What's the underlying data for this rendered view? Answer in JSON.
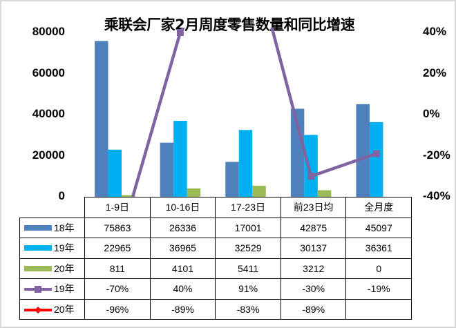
{
  "chart_data": {
    "type": "bar+line",
    "title": "乘联会厂家2月周度零售数量和同比增速",
    "categories": [
      "1-9日",
      "10-16日",
      "17-23日",
      "前23日均",
      "全月度"
    ],
    "left_axis": {
      "ylim": [
        0,
        80000
      ],
      "ticks": [
        "0",
        "20000",
        "40000",
        "60000",
        "80000"
      ]
    },
    "right_axis": {
      "ylim": [
        -40,
        40
      ],
      "ticks": [
        "-40%",
        "-20%",
        "0%",
        "20%",
        "40%"
      ]
    },
    "grid": false,
    "legend": "table",
    "bar_series": [
      {
        "name": "18年",
        "color": "#4f81bd",
        "values": [
          75863,
          26336,
          17001,
          42875,
          45097
        ],
        "labels": [
          "75863",
          "26336",
          "17001",
          "42875",
          "45097"
        ]
      },
      {
        "name": "19年",
        "color": "#00b0f0",
        "values": [
          22965,
          36965,
          32529,
          30137,
          36361
        ],
        "labels": [
          "22965",
          "36965",
          "32529",
          "30137",
          "36361"
        ]
      },
      {
        "name": "20年",
        "color": "#9bbb59",
        "values": [
          811,
          4101,
          5411,
          3212,
          0
        ],
        "labels": [
          "811",
          "4101",
          "5411",
          "3212",
          "0"
        ]
      }
    ],
    "line_series": [
      {
        "name": "19年",
        "color": "#8064a2",
        "marker": "square",
        "values": [
          -70,
          40,
          91,
          -30,
          -19
        ],
        "labels": [
          "-70%",
          "40%",
          "91%",
          "-30%",
          "-19%"
        ]
      },
      {
        "name": "20年",
        "color": "#ff0000",
        "marker": "diamond",
        "values": [
          -96,
          -89,
          -83,
          -89,
          null
        ],
        "labels": [
          "-96%",
          "-89%",
          "-83%",
          "-89%",
          ""
        ]
      }
    ]
  }
}
